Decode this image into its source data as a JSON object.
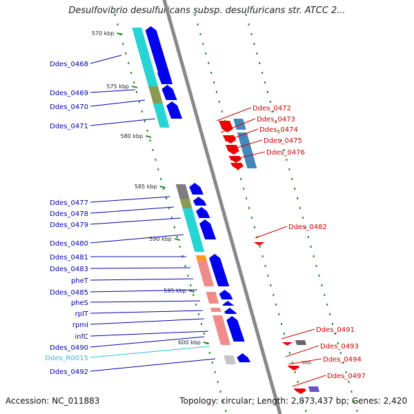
{
  "header": {
    "title": "Desulfovibrio desulfuricans subsp. desulfuricans str. ATCC 2..."
  },
  "footer": {
    "accession": "Accession: NC_011883",
    "stats": "Topology: circular; Length: 2,873,437 bp; Genes: 2,420"
  },
  "colors": {
    "forward_label": "#0000aa",
    "reverse_label": "#cc0000",
    "rna_label": "#33bbdd",
    "forward_gene": "#0000ee",
    "reverse_gene": "#ee0000",
    "backbone": "#888888",
    "tick": "#2a8a2a"
  },
  "ruler": [
    {
      "label": "570 kbp"
    },
    {
      "label": "575 kbp"
    },
    {
      "label": "580 kbp"
    },
    {
      "label": "585 kbp"
    },
    {
      "label": "590 kbp"
    },
    {
      "label": "595 kbp"
    },
    {
      "label": "600 kbp"
    }
  ],
  "left_labels": [
    {
      "name": "Ddes_0468",
      "strand": "forward"
    },
    {
      "name": "Ddes_0469",
      "strand": "forward"
    },
    {
      "name": "Ddes_0470",
      "strand": "forward"
    },
    {
      "name": "Ddes_0471",
      "strand": "forward"
    },
    {
      "name": "Ddes_0477",
      "strand": "forward"
    },
    {
      "name": "Ddes_0478",
      "strand": "forward"
    },
    {
      "name": "Ddes_0479",
      "strand": "forward"
    },
    {
      "name": "Ddes_0480",
      "strand": "forward"
    },
    {
      "name": "Ddes_0481",
      "strand": "forward"
    },
    {
      "name": "Ddes_0483",
      "strand": "forward"
    },
    {
      "name": "pheT",
      "strand": "forward"
    },
    {
      "name": "Ddes_0485",
      "strand": "forward"
    },
    {
      "name": "pheS",
      "strand": "forward"
    },
    {
      "name": "rplT",
      "strand": "forward"
    },
    {
      "name": "rpmI",
      "strand": "forward"
    },
    {
      "name": "infC",
      "strand": "forward"
    },
    {
      "name": "Ddes_0490",
      "strand": "forward"
    },
    {
      "name": "Ddes_R0015",
      "strand": "rna"
    },
    {
      "name": "Ddes_0492",
      "strand": "forward"
    }
  ],
  "right_labels": [
    {
      "name": "Ddes_0472",
      "strand": "reverse"
    },
    {
      "name": "Ddes_0473",
      "strand": "reverse"
    },
    {
      "name": "Ddes_0474",
      "strand": "reverse"
    },
    {
      "name": "Ddes_0475",
      "strand": "reverse"
    },
    {
      "name": "Ddes_0476",
      "strand": "reverse"
    },
    {
      "name": "Ddes_0482",
      "strand": "reverse"
    },
    {
      "name": "Ddes_0491",
      "strand": "reverse"
    },
    {
      "name": "Ddes_0493",
      "strand": "reverse"
    },
    {
      "name": "Ddes_0494",
      "strand": "reverse"
    },
    {
      "name": "Ddes_0497",
      "strand": "reverse"
    }
  ]
}
